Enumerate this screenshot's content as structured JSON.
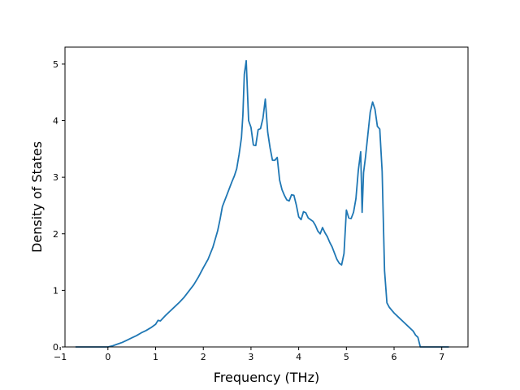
{
  "chart_data": {
    "type": "line",
    "title": "",
    "xlabel": "Frequency (THz)",
    "ylabel": "Density of States",
    "xlim": [
      -0.9,
      7.55
    ],
    "ylim": [
      0,
      5.3
    ],
    "xticks": [
      -1,
      0,
      1,
      2,
      3,
      4,
      5,
      6,
      7
    ],
    "yticks": [
      0,
      1,
      2,
      3,
      4,
      5
    ],
    "xtick_labels": [
      "−1",
      "0",
      "1",
      "2",
      "3",
      "4",
      "5",
      "6",
      "7"
    ],
    "ytick_labels": [
      "0",
      "1",
      "2",
      "3",
      "4",
      "5"
    ],
    "grid": false,
    "series": [
      {
        "color": "#1f77b4",
        "x": [
          -0.68,
          -0.5,
          -0.3,
          -0.1,
          0.0,
          0.1,
          0.2,
          0.3,
          0.4,
          0.5,
          0.6,
          0.7,
          0.8,
          0.9,
          1.0,
          1.05,
          1.1,
          1.2,
          1.3,
          1.4,
          1.5,
          1.6,
          1.7,
          1.8,
          1.9,
          2.0,
          2.1,
          2.2,
          2.3,
          2.35,
          2.4,
          2.5,
          2.6,
          2.65,
          2.7,
          2.75,
          2.8,
          2.83,
          2.86,
          2.9,
          2.95,
          3.0,
          3.05,
          3.1,
          3.15,
          3.2,
          3.25,
          3.3,
          3.35,
          3.4,
          3.45,
          3.5,
          3.55,
          3.6,
          3.65,
          3.7,
          3.75,
          3.8,
          3.85,
          3.9,
          3.95,
          4.0,
          4.05,
          4.1,
          4.15,
          4.2,
          4.25,
          4.3,
          4.35,
          4.4,
          4.45,
          4.5,
          4.55,
          4.6,
          4.65,
          4.7,
          4.75,
          4.8,
          4.85,
          4.9,
          4.95,
          5.0,
          5.05,
          5.1,
          5.15,
          5.2,
          5.25,
          5.3,
          5.33,
          5.36,
          5.4,
          5.45,
          5.5,
          5.55,
          5.6,
          5.65,
          5.7,
          5.75,
          5.8,
          5.85,
          5.9,
          6.0,
          6.1,
          6.2,
          6.3,
          6.4,
          6.45,
          6.5,
          6.55,
          6.6,
          6.8,
          7.0,
          7.15
        ],
        "y": [
          0.0,
          0.0,
          0.0,
          0.0,
          0.0,
          0.02,
          0.05,
          0.08,
          0.12,
          0.16,
          0.2,
          0.25,
          0.29,
          0.34,
          0.4,
          0.47,
          0.46,
          0.55,
          0.63,
          0.71,
          0.79,
          0.88,
          0.99,
          1.1,
          1.24,
          1.4,
          1.55,
          1.76,
          2.05,
          2.25,
          2.48,
          2.7,
          2.92,
          3.02,
          3.15,
          3.4,
          3.7,
          4.1,
          4.82,
          5.06,
          4.0,
          3.88,
          3.57,
          3.56,
          3.84,
          3.86,
          4.04,
          4.38,
          3.8,
          3.52,
          3.3,
          3.3,
          3.35,
          2.95,
          2.78,
          2.68,
          2.6,
          2.58,
          2.69,
          2.68,
          2.51,
          2.3,
          2.25,
          2.39,
          2.37,
          2.28,
          2.25,
          2.22,
          2.15,
          2.05,
          2.0,
          2.11,
          2.02,
          1.95,
          1.85,
          1.77,
          1.66,
          1.55,
          1.48,
          1.45,
          1.65,
          2.42,
          2.28,
          2.27,
          2.38,
          2.62,
          3.12,
          3.45,
          2.38,
          3.08,
          3.35,
          3.75,
          4.15,
          4.33,
          4.2,
          3.9,
          3.85,
          3.1,
          1.35,
          0.78,
          0.7,
          0.6,
          0.52,
          0.44,
          0.36,
          0.28,
          0.21,
          0.17,
          0.0,
          0.0,
          0.0,
          0.0,
          0.0
        ]
      }
    ]
  }
}
